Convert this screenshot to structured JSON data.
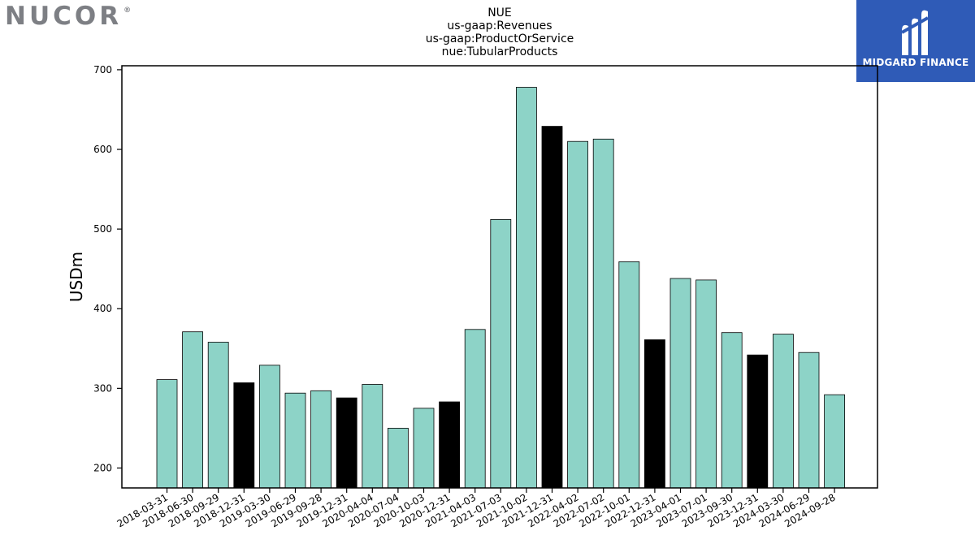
{
  "brand": {
    "left_logo": "NUCOR",
    "left_logo_mark": "®",
    "right_logo": "MIDGARD FINANCE",
    "right_logo_icon": "midgard-m-icon",
    "right_logo_bg": "#2f5bb7"
  },
  "chart_data": {
    "type": "bar",
    "title_lines": [
      "NUE",
      "us-gaap:Revenues",
      "us-gaap:ProductOrService",
      "nue:TubularProducts"
    ],
    "xlabel": "",
    "ylabel": "USDm",
    "ylim": [
      175,
      705
    ],
    "yticks": [
      200,
      300,
      400,
      500,
      600,
      700
    ],
    "grid": false,
    "legend": "none",
    "colors": {
      "quarter": "#8dd3c7",
      "year_end": "#000000",
      "edge": "#000000"
    },
    "categories": [
      "2018-03-31",
      "2018-06-30",
      "2018-09-29",
      "2018-12-31",
      "2019-03-30",
      "2019-06-29",
      "2019-09-28",
      "2019-12-31",
      "2020-04-04",
      "2020-07-04",
      "2020-10-03",
      "2020-12-31",
      "2021-04-03",
      "2021-07-03",
      "2021-10-02",
      "2021-12-31",
      "2022-04-02",
      "2022-07-02",
      "2022-10-01",
      "2022-12-31",
      "2023-04-01",
      "2023-07-01",
      "2023-09-30",
      "2023-12-31",
      "2024-03-30",
      "2024-06-29",
      "2024-09-28"
    ],
    "values": [
      311,
      371,
      358,
      307,
      329,
      294,
      297,
      288,
      305,
      250,
      275,
      283,
      374,
      512,
      678,
      629,
      610,
      613,
      459,
      361,
      438,
      436,
      370,
      342,
      368,
      345,
      292
    ],
    "highlight": [
      false,
      false,
      false,
      true,
      false,
      false,
      false,
      true,
      false,
      false,
      false,
      true,
      false,
      false,
      false,
      true,
      false,
      false,
      false,
      true,
      false,
      false,
      false,
      true,
      false,
      false,
      false
    ]
  }
}
